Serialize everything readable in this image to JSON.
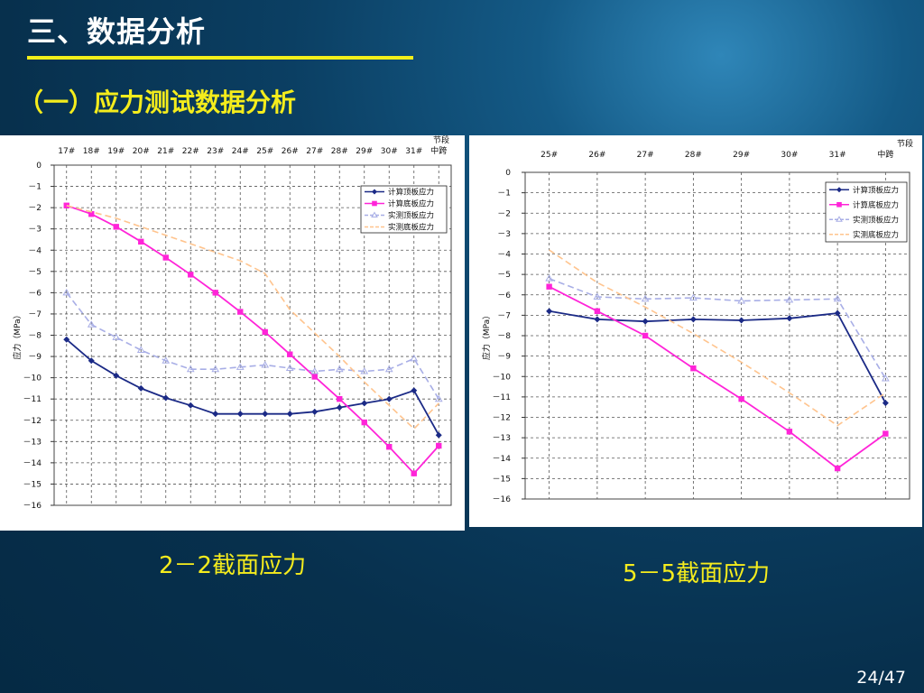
{
  "slide": {
    "title": "三、数据分析",
    "subtitle": "（一）应力测试数据分析",
    "page": "24/47"
  },
  "colors": {
    "calc_top": "#1b2a86",
    "calc_bottom": "#ff24d8",
    "meas_top": "#a8aee6",
    "meas_bottom": "#ffc48e",
    "accent_yellow": "#f3ef1a"
  },
  "chart_data": [
    {
      "type": "line",
      "caption": "2－2截面应力",
      "title": "",
      "xlabel": "节段",
      "ylabel": "应力（MPa）",
      "categories": [
        "17#",
        "18#",
        "19#",
        "20#",
        "21#",
        "22#",
        "23#",
        "24#",
        "25#",
        "26#",
        "27#",
        "28#",
        "29#",
        "30#",
        "31#",
        "中跨"
      ],
      "ylim": [
        -16,
        0
      ],
      "yticks": [
        0,
        -1,
        -2,
        -3,
        -4,
        -5,
        -6,
        -7,
        -8,
        -9,
        -10,
        -11,
        -12,
        -13,
        -14,
        -15,
        -16
      ],
      "grid": true,
      "legend_position": "top-right",
      "series": [
        {
          "name": "计算顶板应力",
          "style": "line-diamond",
          "color": "#1b2a86",
          "values": [
            -8.2,
            -9.2,
            -9.9,
            -10.5,
            -10.95,
            -11.3,
            -11.7,
            -11.7,
            -11.7,
            -11.7,
            -11.6,
            -11.4,
            -11.2,
            -11.0,
            -10.6,
            -12.7
          ]
        },
        {
          "name": "计算底板应力",
          "style": "line-square",
          "color": "#ff24d8",
          "values": [
            -1.9,
            -2.3,
            -2.9,
            -3.6,
            -4.35,
            -5.15,
            -6.0,
            -6.9,
            -7.85,
            -8.9,
            -9.95,
            -11.0,
            -12.1,
            -13.25,
            -14.5,
            -13.2
          ]
        },
        {
          "name": "实测顶板应力",
          "style": "dashed-triangle",
          "color": "#a8aee6",
          "values": [
            -6.0,
            -7.5,
            -8.1,
            -8.7,
            -9.2,
            -9.6,
            -9.6,
            -9.5,
            -9.4,
            -9.55,
            -9.7,
            -9.6,
            -9.7,
            -9.6,
            -9.1,
            -11.0
          ]
        },
        {
          "name": "实测底板应力",
          "style": "dashed",
          "color": "#ffc48e",
          "values": [
            -1.9,
            -2.2,
            -2.5,
            -2.9,
            -3.3,
            -3.7,
            -4.1,
            -4.5,
            -5.1,
            -6.8,
            -7.9,
            -9.0,
            -10.2,
            -11.3,
            -12.4,
            -11.2
          ]
        }
      ]
    },
    {
      "type": "line",
      "caption": "5－5截面应力",
      "title": "",
      "xlabel": "节段",
      "ylabel": "应力（MPa）",
      "categories": [
        "25#",
        "26#",
        "27#",
        "28#",
        "29#",
        "30#",
        "31#",
        "中跨"
      ],
      "ylim": [
        -16,
        0
      ],
      "yticks": [
        0,
        -1,
        -2,
        -3,
        -4,
        -5,
        -6,
        -7,
        -8,
        -9,
        -10,
        -11,
        -12,
        -13,
        -14,
        -15,
        -16
      ],
      "grid": true,
      "legend_position": "top-right",
      "series": [
        {
          "name": "计算顶板应力",
          "style": "line-diamond",
          "color": "#1b2a86",
          "values": [
            -6.8,
            -7.2,
            -7.3,
            -7.2,
            -7.25,
            -7.15,
            -6.9,
            -11.3
          ]
        },
        {
          "name": "计算底板应力",
          "style": "line-square",
          "color": "#ff24d8",
          "values": [
            -5.6,
            -6.8,
            -8.0,
            -9.6,
            -11.1,
            -12.7,
            -14.5,
            -12.8
          ]
        },
        {
          "name": "实测顶板应力",
          "style": "dashed-triangle",
          "color": "#a8aee6",
          "values": [
            -5.2,
            -6.1,
            -6.2,
            -6.15,
            -6.3,
            -6.25,
            -6.2,
            -10.1
          ]
        },
        {
          "name": "实测底板应力",
          "style": "dashed",
          "color": "#ffc48e",
          "values": [
            -3.8,
            -5.4,
            -6.6,
            -7.9,
            -9.3,
            -10.8,
            -12.4,
            -10.8
          ]
        }
      ]
    }
  ]
}
